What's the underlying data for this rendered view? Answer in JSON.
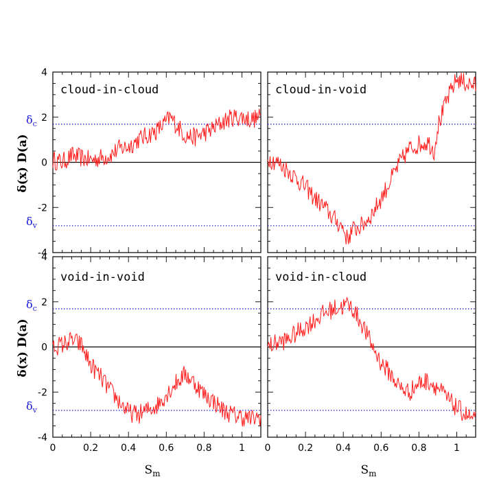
{
  "chart_data": {
    "type": "line",
    "xlim": [
      0,
      1.1
    ],
    "ylim": [
      -4,
      4
    ],
    "xticks": [
      0,
      0.2,
      0.4,
      0.6,
      0.8,
      1
    ],
    "xtick_labels": [
      "0",
      "0.2",
      "0.4",
      "0.6",
      "0.8",
      "1"
    ],
    "yticks": [
      -4,
      -2,
      0,
      2,
      4
    ],
    "ytick_labels": [
      "-4",
      "-2",
      "0",
      "2",
      "4"
    ],
    "xlabel": "S",
    "xlabel_sub": "m",
    "ylabel": "δ(x) D(a)",
    "zero_line": 0,
    "delta_c": {
      "symbol": "δ",
      "sub": "c",
      "value": 1.69
    },
    "delta_v": {
      "symbol": "δ",
      "sub": "v",
      "value": -2.81
    },
    "colors": {
      "walk": "#ff1a1a",
      "threshold": "#2222cc",
      "zero": "#000000"
    },
    "panels": [
      {
        "label": "cloud-in-cloud",
        "x": [
          0,
          0.05,
          0.1,
          0.15,
          0.2,
          0.25,
          0.3,
          0.35,
          0.4,
          0.45,
          0.5,
          0.55,
          0.6,
          0.62,
          0.65,
          0.7,
          0.75,
          0.8,
          0.85,
          0.9,
          0.95,
          1.0,
          1.05,
          1.1
        ],
        "y": [
          0.1,
          0.0,
          0.3,
          0.2,
          0.1,
          0.2,
          0.3,
          0.6,
          0.7,
          1.0,
          1.2,
          1.4,
          1.8,
          2.0,
          1.7,
          1.2,
          1.1,
          1.3,
          1.5,
          1.8,
          2.0,
          2.0,
          1.9,
          2.0
        ]
      },
      {
        "label": "cloud-in-void",
        "x": [
          0,
          0.05,
          0.1,
          0.15,
          0.2,
          0.25,
          0.3,
          0.35,
          0.4,
          0.42,
          0.45,
          0.5,
          0.55,
          0.6,
          0.65,
          0.7,
          0.75,
          0.8,
          0.85,
          0.88,
          0.9,
          0.95,
          1.0,
          1.05,
          1.1
        ],
        "y": [
          0.2,
          0.0,
          -0.3,
          -0.7,
          -1.1,
          -1.6,
          -2.0,
          -2.5,
          -2.9,
          -3.4,
          -3.0,
          -2.8,
          -2.3,
          -1.6,
          -0.8,
          0.0,
          0.6,
          0.8,
          0.9,
          0.5,
          1.6,
          2.8,
          3.7,
          3.5,
          3.4
        ]
      },
      {
        "label": "void-in-void",
        "x": [
          0,
          0.05,
          0.1,
          0.15,
          0.2,
          0.25,
          0.3,
          0.35,
          0.4,
          0.45,
          0.5,
          0.55,
          0.6,
          0.65,
          0.7,
          0.75,
          0.8,
          0.85,
          0.9,
          0.95,
          1.0,
          1.05,
          1.1
        ],
        "y": [
          0.0,
          0.1,
          0.3,
          0.1,
          -0.8,
          -1.3,
          -1.9,
          -2.4,
          -2.9,
          -3.0,
          -2.8,
          -2.6,
          -2.1,
          -1.6,
          -1.2,
          -1.6,
          -2.1,
          -2.4,
          -2.8,
          -3.0,
          -3.1,
          -3.2,
          -3.1
        ]
      },
      {
        "label": "void-in-cloud",
        "x": [
          0,
          0.05,
          0.1,
          0.15,
          0.2,
          0.25,
          0.3,
          0.35,
          0.4,
          0.42,
          0.45,
          0.5,
          0.55,
          0.6,
          0.65,
          0.7,
          0.75,
          0.8,
          0.85,
          0.9,
          0.95,
          1.0,
          1.05,
          1.1
        ],
        "y": [
          0.0,
          0.2,
          0.3,
          0.6,
          0.9,
          1.2,
          1.5,
          1.7,
          1.8,
          1.9,
          1.7,
          1.0,
          0.1,
          -0.7,
          -1.2,
          -1.8,
          -2.0,
          -1.6,
          -1.5,
          -1.8,
          -2.3,
          -2.7,
          -3.0,
          -3.3
        ]
      }
    ]
  }
}
